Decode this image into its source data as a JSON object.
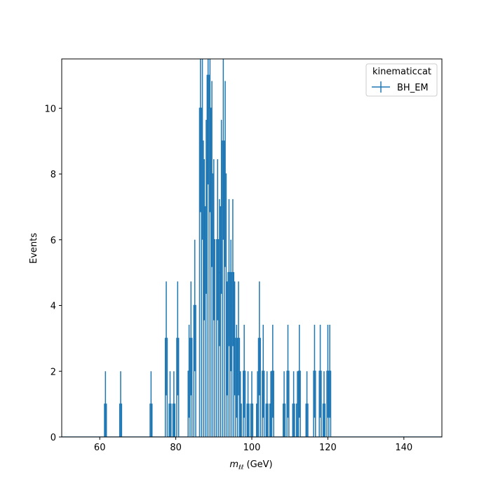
{
  "chart_data": {
    "type": "histogram-step",
    "xlabel_main": "m",
    "xlabel_sub": "ℓℓ",
    "xlabel_unit": "(GeV)",
    "ylabel": "Events",
    "xlim": [
      50,
      150
    ],
    "ylim": [
      0,
      11.5
    ],
    "xticks": [
      60,
      80,
      100,
      120,
      140
    ],
    "yticks": [
      0,
      2,
      4,
      6,
      8,
      10
    ],
    "bin_width": 0.5,
    "legend_title": "kinematiccat",
    "legend_position": "top-right",
    "series": [
      {
        "name": "BH_EM",
        "color": "#1f77b4",
        "bins": [
          {
            "x": 61.5,
            "y": 1
          },
          {
            "x": 65.5,
            "y": 1
          },
          {
            "x": 73.5,
            "y": 1
          },
          {
            "x": 77.5,
            "y": 3
          },
          {
            "x": 78.5,
            "y": 1
          },
          {
            "x": 79.5,
            "y": 1
          },
          {
            "x": 80.5,
            "y": 3
          },
          {
            "x": 83.5,
            "y": 2
          },
          {
            "x": 84.0,
            "y": 3
          },
          {
            "x": 85.0,
            "y": 4
          },
          {
            "x": 86.5,
            "y": 10
          },
          {
            "x": 87.0,
            "y": 9
          },
          {
            "x": 87.5,
            "y": 6
          },
          {
            "x": 88.0,
            "y": 7
          },
          {
            "x": 88.5,
            "y": 11
          },
          {
            "x": 89.0,
            "y": 10
          },
          {
            "x": 89.5,
            "y": 8
          },
          {
            "x": 90.0,
            "y": 6
          },
          {
            "x": 91.0,
            "y": 6
          },
          {
            "x": 91.5,
            "y": 5
          },
          {
            "x": 92.0,
            "y": 7
          },
          {
            "x": 92.5,
            "y": 9
          },
          {
            "x": 93.0,
            "y": 8
          },
          {
            "x": 93.5,
            "y": 3
          },
          {
            "x": 94.0,
            "y": 5
          },
          {
            "x": 94.5,
            "y": 4
          },
          {
            "x": 95.0,
            "y": 5
          },
          {
            "x": 95.5,
            "y": 3
          },
          {
            "x": 96.0,
            "y": 2
          },
          {
            "x": 96.5,
            "y": 3
          },
          {
            "x": 97.0,
            "y": 1
          },
          {
            "x": 98.0,
            "y": 2
          },
          {
            "x": 99.0,
            "y": 1
          },
          {
            "x": 100.0,
            "y": 1
          },
          {
            "x": 101.5,
            "y": 1
          },
          {
            "x": 102.0,
            "y": 3
          },
          {
            "x": 103.0,
            "y": 2
          },
          {
            "x": 104.0,
            "y": 1
          },
          {
            "x": 105.0,
            "y": 1
          },
          {
            "x": 105.5,
            "y": 2
          },
          {
            "x": 108.5,
            "y": 1
          },
          {
            "x": 109.5,
            "y": 2
          },
          {
            "x": 111.0,
            "y": 1
          },
          {
            "x": 112.0,
            "y": 1
          },
          {
            "x": 112.5,
            "y": 2
          },
          {
            "x": 114.5,
            "y": 1
          },
          {
            "x": 116.5,
            "y": 2
          },
          {
            "x": 118.0,
            "y": 2
          },
          {
            "x": 119.0,
            "y": 1
          },
          {
            "x": 120.0,
            "y": 2
          },
          {
            "x": 120.5,
            "y": 2
          }
        ]
      }
    ]
  }
}
